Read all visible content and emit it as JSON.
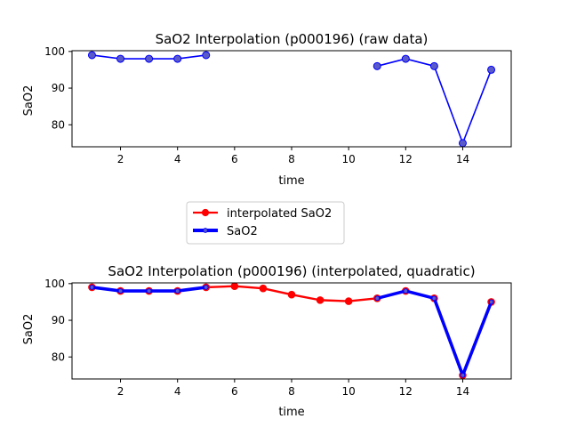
{
  "chart_data": [
    {
      "type": "line",
      "title": "SaO2 Interpolation (p000196) (raw data)",
      "xlabel": "time",
      "ylabel": "SaO2",
      "xlim": [
        0.3,
        15.7
      ],
      "ylim": [
        74,
        100.2
      ],
      "xticks": [
        2,
        4,
        6,
        8,
        10,
        12,
        14
      ],
      "yticks": [
        80,
        90,
        100
      ],
      "grid": false,
      "series": [
        {
          "name": "SaO2",
          "color": "#0000ff",
          "marker_color": "#5a5ac8",
          "segments": [
            {
              "x": [
                1,
                2,
                3,
                4,
                5
              ],
              "y": [
                99,
                98,
                98,
                98,
                99
              ]
            },
            {
              "x": [
                11,
                12,
                13,
                14,
                15
              ],
              "y": [
                96,
                98,
                96,
                75,
                95
              ]
            }
          ]
        }
      ]
    },
    {
      "type": "line",
      "title": "SaO2 Interpolation (p000196) (interpolated, quadratic)",
      "xlabel": "time",
      "ylabel": "SaO2",
      "xlim": [
        0.3,
        15.7
      ],
      "ylim": [
        74,
        100.2
      ],
      "xticks": [
        2,
        4,
        6,
        8,
        10,
        12,
        14
      ],
      "yticks": [
        80,
        90,
        100
      ],
      "grid": false,
      "legend_placement": "upper-center",
      "series": [
        {
          "name": "interpolated SaO2",
          "color": "#ff0000",
          "x": [
            1,
            2,
            3,
            4,
            5,
            6,
            7,
            8,
            9,
            10,
            11,
            12,
            13,
            14,
            15
          ],
          "y": [
            99,
            98,
            98,
            98,
            99,
            99.3,
            98.7,
            97,
            95.5,
            95.2,
            96,
            98,
            96,
            75,
            95
          ]
        },
        {
          "name": "SaO2",
          "color": "#0000ff",
          "segments": [
            {
              "x": [
                1,
                2,
                3,
                4,
                5
              ],
              "y": [
                99,
                98,
                98,
                98,
                99
              ]
            },
            {
              "x": [
                11,
                12,
                13,
                14,
                15
              ],
              "y": [
                96,
                98,
                96,
                75,
                95
              ]
            }
          ]
        }
      ]
    }
  ]
}
